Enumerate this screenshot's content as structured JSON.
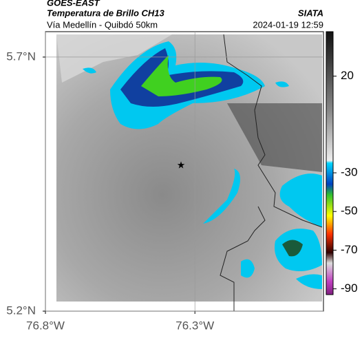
{
  "header": {
    "title": "GOES-EAST",
    "subtitle": "Temperatura de Brillo CH13",
    "location": "Vía Medellín - Quibdó 50km",
    "source": "SIATA",
    "timestamp": "2024-01-19 12:59"
  },
  "map": {
    "xlim": [
      -76.8,
      -75.87
    ],
    "ylim": [
      5.2,
      5.75
    ],
    "xticks": [
      {
        "value": -76.8,
        "label": "76.8°W"
      },
      {
        "value": -76.3,
        "label": "76.3°W"
      }
    ],
    "yticks": [
      {
        "value": 5.7,
        "label": "5.7°N"
      },
      {
        "value": 5.2,
        "label": "5.2°N"
      }
    ],
    "grid": true
  },
  "colorbar": {
    "lim": [
      -93,
      43
    ],
    "ticks": [
      20,
      -30,
      -50,
      -70,
      -90
    ]
  }
}
